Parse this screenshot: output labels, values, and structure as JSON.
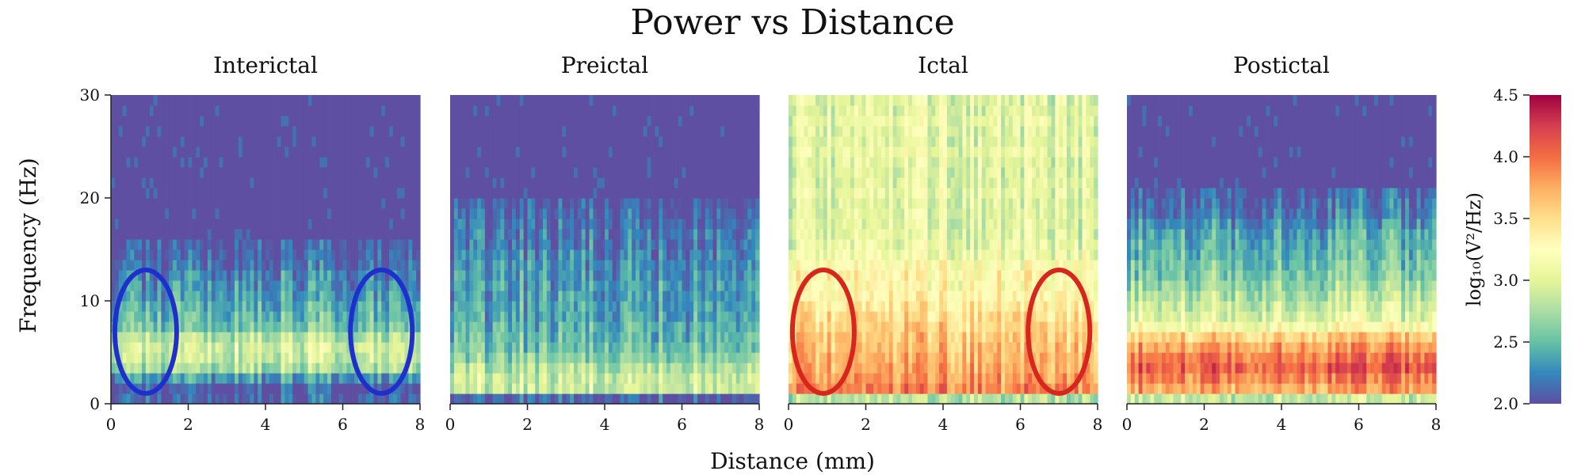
{
  "figure": {
    "title": "Power vs Distance",
    "xlabel": "Distance (mm)",
    "ylabel": "Frequency (Hz)"
  },
  "colorbar": {
    "label": "log₁₀(V²/Hz)",
    "range": [
      2.0,
      4.5
    ],
    "ticks": [
      "2.0",
      "2.5",
      "3.0",
      "3.5",
      "4.0",
      "4.5"
    ],
    "tick_values": [
      2.0,
      2.5,
      3.0,
      3.5,
      4.0,
      4.5
    ],
    "colormap": "Spectral_r",
    "stops": [
      "#5e4fa2",
      "#3288bd",
      "#66c2a5",
      "#abdda4",
      "#e6f598",
      "#ffffbf",
      "#fee08b",
      "#fdae61",
      "#f46d43",
      "#d53e4f",
      "#9e0142"
    ]
  },
  "chart_data": [
    {
      "type": "heatmap",
      "title": "Interictal",
      "xlim": [
        0,
        8
      ],
      "ylim": [
        0,
        30
      ],
      "xticks": [
        "0",
        "2",
        "4",
        "6",
        "8"
      ],
      "yticks": [
        "0",
        "10",
        "20",
        "30"
      ],
      "profile": [
        2.1,
        2.05,
        2.35,
        2.75,
        2.9,
        2.95,
        2.8,
        2.55,
        2.5,
        2.45,
        2.35,
        2.3,
        2.25,
        2.15,
        2.1,
        2.05,
        2.0,
        2.0,
        2.0,
        2.0,
        2.0,
        2.0,
        2.0,
        2.0,
        2.0,
        2.0,
        2.0,
        2.0,
        2.0,
        2.0
      ],
      "annotations": [
        {
          "shape": "ellipse",
          "color": "#1f2fcc",
          "center": [
            0.9,
            7
          ],
          "radius": [
            0.8,
            6
          ]
        },
        {
          "shape": "ellipse",
          "color": "#1f2fcc",
          "center": [
            7.0,
            7
          ],
          "radius": [
            0.8,
            6
          ]
        }
      ]
    },
    {
      "type": "heatmap",
      "title": "Preictal",
      "xlim": [
        0,
        8
      ],
      "ylim": [
        0,
        30
      ],
      "xticks": [
        "0",
        "2",
        "4",
        "6",
        "8"
      ],
      "yticks": [],
      "profile": [
        2.1,
        2.9,
        2.9,
        2.8,
        2.65,
        2.55,
        2.5,
        2.45,
        2.4,
        2.4,
        2.35,
        2.35,
        2.3,
        2.3,
        2.25,
        2.2,
        2.2,
        2.15,
        2.1,
        2.05,
        2.0,
        2.0,
        2.0,
        2.0,
        2.0,
        2.0,
        2.0,
        2.0,
        2.0,
        2.0
      ],
      "annotations": []
    },
    {
      "type": "heatmap",
      "title": "Ictal",
      "xlim": [
        0,
        8
      ],
      "ylim": [
        0,
        30
      ],
      "xticks": [
        "0",
        "2",
        "4",
        "6",
        "8"
      ],
      "yticks": [],
      "profile": [
        2.8,
        3.9,
        3.8,
        3.75,
        3.7,
        3.65,
        3.6,
        3.55,
        3.5,
        3.4,
        3.3,
        3.25,
        3.3,
        3.2,
        3.1,
        3.05,
        3.0,
        3.0,
        3.0,
        3.0,
        3.05,
        3.0,
        3.0,
        3.0,
        3.05,
        3.0,
        3.0,
        3.05,
        3.0,
        3.0
      ],
      "annotations": [
        {
          "shape": "ellipse",
          "color": "#d7261e",
          "center": [
            0.9,
            7
          ],
          "radius": [
            0.8,
            6
          ]
        },
        {
          "shape": "ellipse",
          "color": "#d7261e",
          "center": [
            7.0,
            7
          ],
          "radius": [
            0.8,
            6
          ]
        }
      ]
    },
    {
      "type": "heatmap",
      "title": "Postictal",
      "xlim": [
        0,
        8
      ],
      "ylim": [
        0,
        30
      ],
      "xticks": [
        "0",
        "2",
        "4",
        "6",
        "8"
      ],
      "yticks": [],
      "profile": [
        2.9,
        3.8,
        3.95,
        4.1,
        4.0,
        3.8,
        3.6,
        3.2,
        3.0,
        2.9,
        2.8,
        2.7,
        2.6,
        2.55,
        2.5,
        2.45,
        2.4,
        2.3,
        2.2,
        2.15,
        2.1,
        2.0,
        2.0,
        2.0,
        2.0,
        2.0,
        2.0,
        2.0,
        2.0,
        2.0
      ],
      "annotations": []
    }
  ]
}
